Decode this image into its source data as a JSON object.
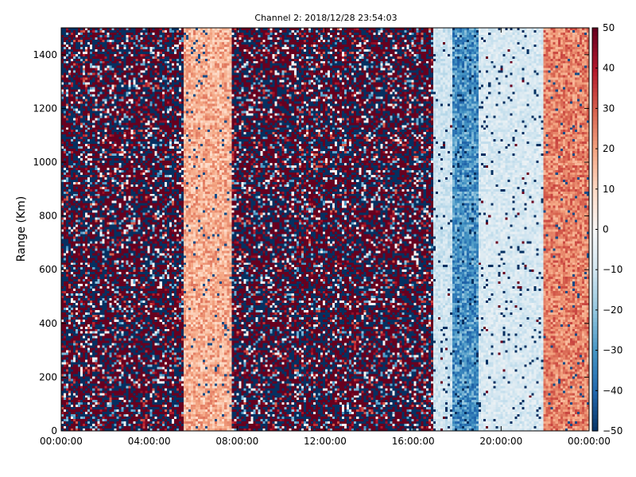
{
  "chart_data": {
    "type": "heatmap",
    "title": "Channel 2: 2018/12/28 23:54:03",
    "ylabel": "Range (Km)",
    "xlabel": "",
    "x_ticks": [
      "00:00:00",
      "04:00:00",
      "08:00:00",
      "12:00:00",
      "16:00:00",
      "20:00:00",
      "00:00:00"
    ],
    "y_ticks": [
      "0",
      "200",
      "400",
      "600",
      "800",
      "1000",
      "1200",
      "1400"
    ],
    "ylim": [
      0,
      1500
    ],
    "xlim_hours": [
      0,
      24
    ],
    "colorbar": {
      "ticks": [
        "50",
        "40",
        "30",
        "20",
        "10",
        "0",
        "−10",
        "−20",
        "−30",
        "−40",
        "−50"
      ],
      "range": [
        -50,
        50
      ],
      "colormap": "RdBu_r"
    },
    "regions": [
      {
        "start_hour": 0.0,
        "end_hour": 5.6,
        "pattern": "noise"
      },
      {
        "start_hour": 5.6,
        "end_hour": 7.7,
        "pattern": "warm-band",
        "level": 18
      },
      {
        "start_hour": 7.7,
        "end_hour": 13.5,
        "pattern": "noise"
      },
      {
        "start_hour": 13.5,
        "end_hour": 16.9,
        "pattern": "noise"
      },
      {
        "start_hour": 16.9,
        "end_hour": 17.8,
        "pattern": "light-cool",
        "level": -10
      },
      {
        "start_hour": 17.8,
        "end_hour": 19.0,
        "pattern": "cool-band",
        "level": -30
      },
      {
        "start_hour": 19.0,
        "end_hour": 21.9,
        "pattern": "light-cool",
        "level": -8
      },
      {
        "start_hour": 21.9,
        "end_hour": 24.0,
        "pattern": "warm-band",
        "level": 25
      }
    ]
  }
}
